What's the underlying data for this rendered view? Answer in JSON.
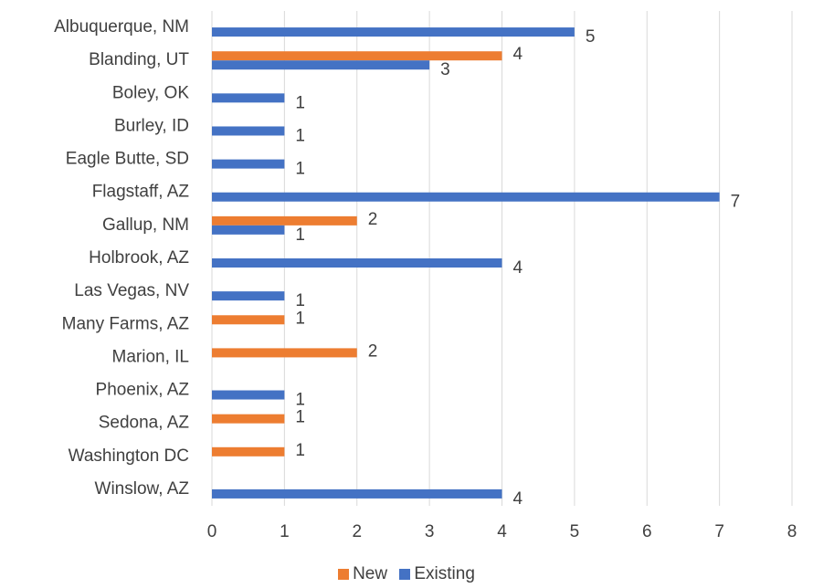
{
  "chart_data": {
    "type": "bar",
    "orientation": "horizontal",
    "categories": [
      "Albuquerque, NM",
      "Blanding, UT",
      "Boley, OK",
      "Burley, ID",
      "Eagle Butte, SD",
      "Flagstaff, AZ",
      "Gallup, NM",
      "Holbrook, AZ",
      "Las Vegas, NV",
      "Many Farms, AZ",
      "Marion, IL",
      "Phoenix, AZ",
      "Sedona, AZ",
      "Washington DC",
      "Winslow, AZ"
    ],
    "series": [
      {
        "name": "New",
        "color": "#ED7D31",
        "values": [
          null,
          4,
          null,
          null,
          null,
          null,
          2,
          null,
          null,
          1,
          2,
          null,
          1,
          1,
          null
        ]
      },
      {
        "name": "Existing",
        "color": "#4472C4",
        "values": [
          5,
          3,
          1,
          1,
          1,
          7,
          1,
          4,
          1,
          null,
          null,
          1,
          null,
          null,
          4
        ]
      }
    ],
    "xlim": [
      0,
      8
    ],
    "xticks": [
      "0",
      "1",
      "2",
      "3",
      "4",
      "5",
      "6",
      "7",
      "8"
    ],
    "grid": true,
    "legend_position": "bottom",
    "data_labels": true
  },
  "colors": {
    "grid": "#D9D9D9",
    "text": "#404040"
  }
}
